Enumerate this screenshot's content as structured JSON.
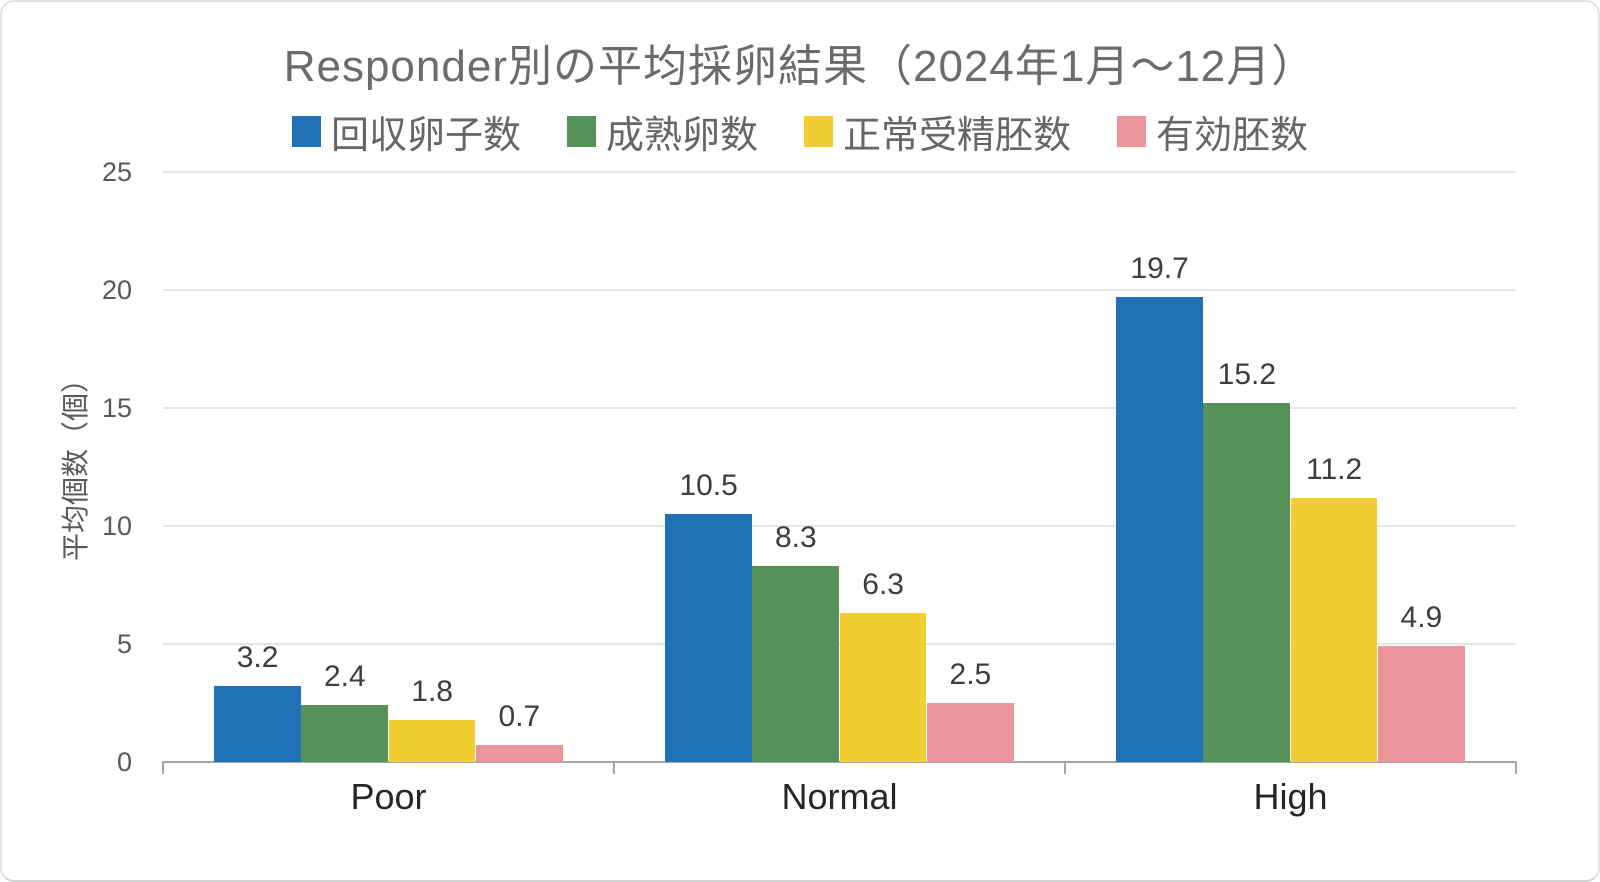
{
  "chart_data": {
    "type": "bar",
    "title": "Responder別の平均採卵結果（2024年1月～12月）",
    "categories": [
      "Poor",
      "Normal",
      "High"
    ],
    "series": [
      {
        "name": "回収卵子数",
        "color": "#2171B7",
        "values": [
          3.2,
          10.5,
          19.7
        ]
      },
      {
        "name": "成熟卵数",
        "color": "#559159",
        "values": [
          2.4,
          8.3,
          15.2
        ]
      },
      {
        "name": "正常受精胚数",
        "color": "#F1CF33",
        "values": [
          1.8,
          6.3,
          11.2
        ]
      },
      {
        "name": "有効胚数",
        "color": "#EB949C",
        "values": [
          0.7,
          2.5,
          4.9
        ]
      }
    ],
    "xlabel": "",
    "ylabel": "平均個数（個）",
    "ylim": [
      0,
      25
    ],
    "yticks": [
      0,
      5,
      10,
      15,
      20,
      25
    ],
    "grid": true,
    "legend_position": "top",
    "value_labels_shown": true
  },
  "style": {
    "title_color": "#6b6b6b",
    "legend_text_color": "#666666",
    "tick_label_color": "#595959",
    "axis_title_color": "#595959",
    "category_label_color": "#262626",
    "value_label_color": "#3d3d3d",
    "axis_line_color": "#a6a6a6",
    "gridline_color": "#e5e5e5",
    "background": "#ffffff"
  }
}
